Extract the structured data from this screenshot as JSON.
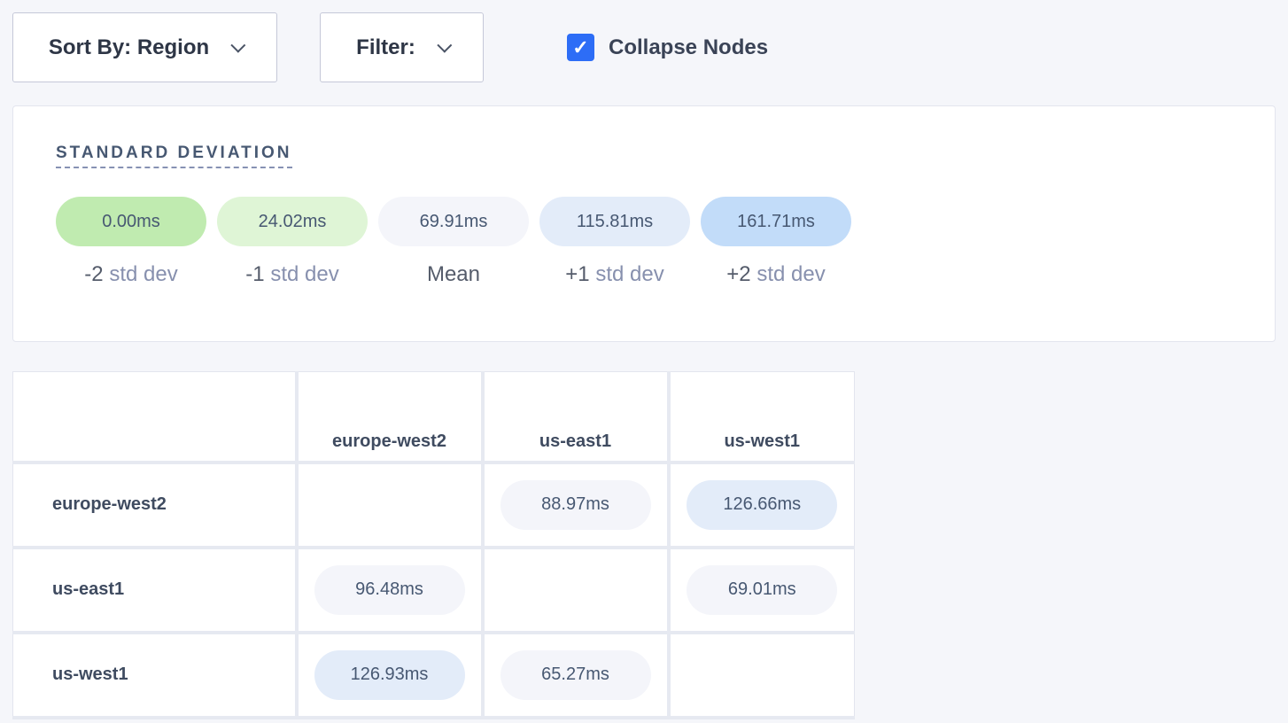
{
  "toolbar": {
    "sort_label": "Sort By: Region",
    "filter_label": "Filter:",
    "collapse_label": "Collapse Nodes",
    "collapse_checked": true
  },
  "legend": {
    "title": "STANDARD DEVIATION",
    "items": [
      {
        "value": "0.00ms",
        "prefix": "-2",
        "suffix": "std dev",
        "color": "#c0ebb0"
      },
      {
        "value": "24.02ms",
        "prefix": "-1",
        "suffix": "std dev",
        "color": "#dff5d6"
      },
      {
        "value": "69.91ms",
        "prefix": "Mean",
        "suffix": "",
        "color": "#f4f5fa"
      },
      {
        "value": "115.81ms",
        "prefix": "+1",
        "suffix": "std dev",
        "color": "#e3ecf9"
      },
      {
        "value": "161.71ms",
        "prefix": "+2",
        "suffix": "std dev",
        "color": "#c2dcf9"
      }
    ]
  },
  "matrix": {
    "columns": [
      "europe-west2",
      "us-east1",
      "us-west1"
    ],
    "rows": [
      {
        "label": "europe-west2",
        "cells": [
          null,
          {
            "value": "88.97ms",
            "color": "#f4f5fa"
          },
          {
            "value": "126.66ms",
            "color": "#e3ecf9"
          }
        ]
      },
      {
        "label": "us-east1",
        "cells": [
          {
            "value": "96.48ms",
            "color": "#f4f5fa"
          },
          null,
          {
            "value": "69.01ms",
            "color": "#f4f5fa"
          }
        ]
      },
      {
        "label": "us-west1",
        "cells": [
          {
            "value": "126.93ms",
            "color": "#e3ecf9"
          },
          {
            "value": "65.27ms",
            "color": "#f4f5fa"
          },
          null
        ]
      }
    ]
  }
}
